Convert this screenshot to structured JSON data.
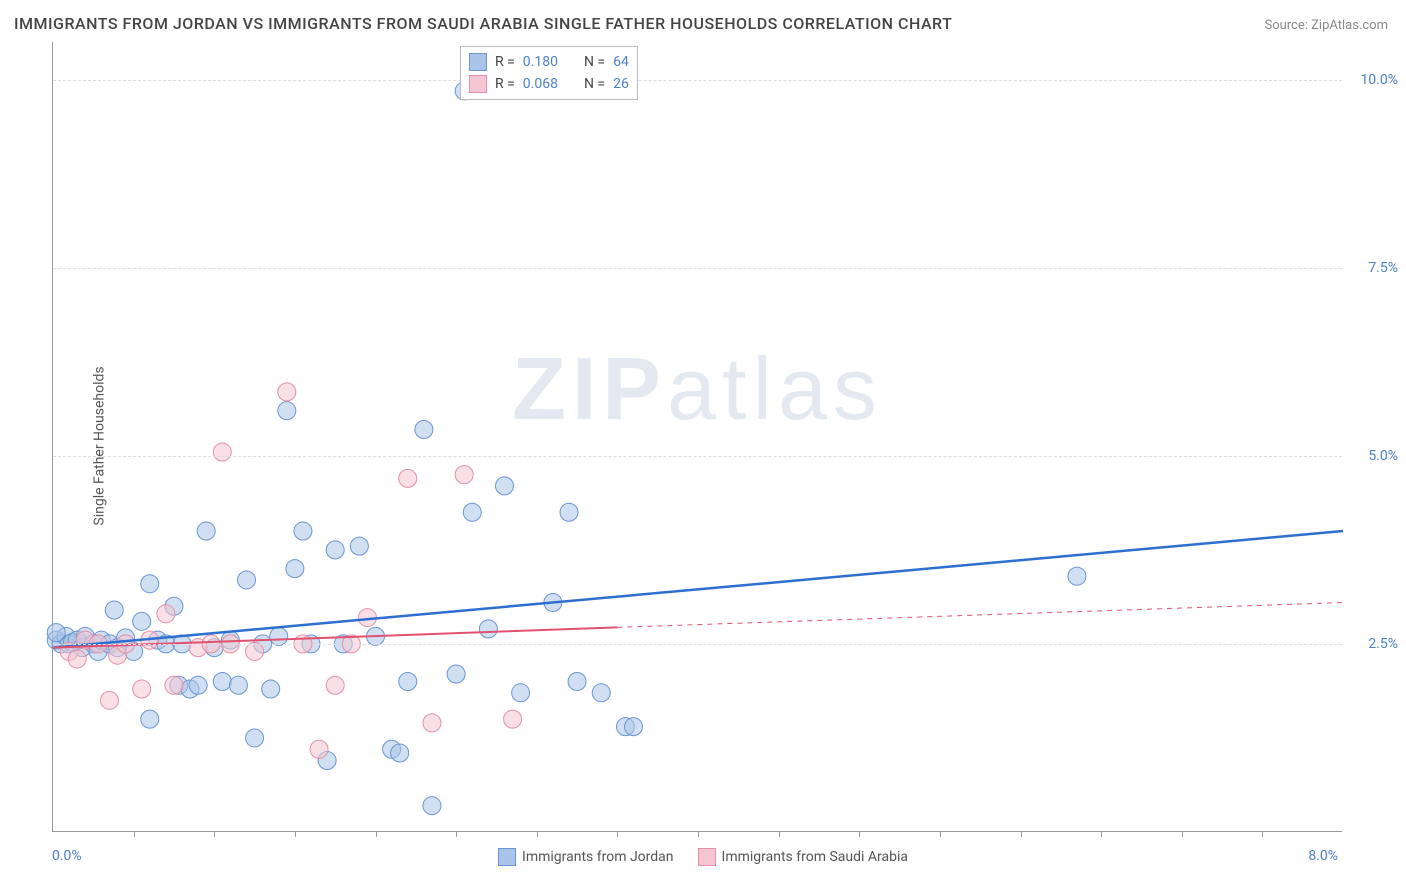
{
  "title": "IMMIGRANTS FROM JORDAN VS IMMIGRANTS FROM SAUDI ARABIA SINGLE FATHER HOUSEHOLDS CORRELATION CHART",
  "source": "Source: ZipAtlas.com",
  "y_axis_title": "Single Father Households",
  "watermark_a": "ZIP",
  "watermark_b": "atlas",
  "chart": {
    "type": "scatter",
    "xlim": [
      0,
      8
    ],
    "ylim": [
      0,
      10.5
    ],
    "x_origin_label": "0.0%",
    "x_end_label": "8.0%",
    "y_ticks": [
      {
        "value": 2.5,
        "label": "2.5%"
      },
      {
        "value": 5.0,
        "label": "5.0%"
      },
      {
        "value": 7.5,
        "label": "7.5%"
      },
      {
        "value": 10.0,
        "label": "10.0%"
      }
    ],
    "x_tick_positions": [
      0.5,
      1.0,
      1.5,
      2.0,
      2.5,
      3.0,
      3.5,
      4.0,
      4.5,
      5.0,
      5.5,
      6.0,
      6.5,
      7.0,
      7.5
    ],
    "background_color": "#ffffff",
    "grid_color": "#dddddd",
    "marker_radius": 9,
    "marker_opacity": 0.55,
    "series": [
      {
        "name": "Immigrants from Jordan",
        "color_fill": "#a9c4e8",
        "color_stroke": "#6b96d1",
        "R": "0.180",
        "N": "64",
        "trend": {
          "x1": 0,
          "y1": 2.45,
          "x2": 8,
          "y2": 4.0,
          "color": "#2d6fd1",
          "width": 2.5,
          "dash": "none"
        },
        "trend_ext": null,
        "points": [
          [
            0.02,
            2.55
          ],
          [
            0.05,
            2.5
          ],
          [
            0.08,
            2.6
          ],
          [
            0.1,
            2.5
          ],
          [
            0.12,
            2.52
          ],
          [
            0.15,
            2.55
          ],
          [
            0.18,
            2.45
          ],
          [
            0.2,
            2.6
          ],
          [
            0.25,
            2.5
          ],
          [
            0.28,
            2.4
          ],
          [
            0.3,
            2.55
          ],
          [
            0.35,
            2.5
          ],
          [
            0.38,
            2.95
          ],
          [
            0.4,
            2.45
          ],
          [
            0.45,
            2.58
          ],
          [
            0.5,
            2.4
          ],
          [
            0.55,
            2.8
          ],
          [
            0.6,
            3.3
          ],
          [
            0.6,
            1.5
          ],
          [
            0.65,
            2.55
          ],
          [
            0.7,
            2.5
          ],
          [
            0.75,
            3.0
          ],
          [
            0.78,
            1.95
          ],
          [
            0.8,
            2.5
          ],
          [
            0.85,
            1.9
          ],
          [
            0.9,
            1.95
          ],
          [
            0.95,
            4.0
          ],
          [
            1.0,
            2.45
          ],
          [
            1.05,
            2.0
          ],
          [
            1.1,
            2.55
          ],
          [
            1.2,
            3.35
          ],
          [
            1.25,
            1.25
          ],
          [
            1.3,
            2.5
          ],
          [
            1.35,
            1.9
          ],
          [
            1.4,
            2.6
          ],
          [
            1.45,
            5.6
          ],
          [
            1.5,
            3.5
          ],
          [
            1.55,
            4.0
          ],
          [
            1.6,
            2.5
          ],
          [
            1.7,
            0.95
          ],
          [
            1.75,
            3.75
          ],
          [
            1.8,
            2.5
          ],
          [
            1.9,
            3.8
          ],
          [
            2.0,
            2.6
          ],
          [
            2.1,
            1.1
          ],
          [
            2.15,
            1.05
          ],
          [
            2.2,
            2.0
          ],
          [
            2.3,
            5.35
          ],
          [
            2.35,
            0.35
          ],
          [
            2.5,
            2.1
          ],
          [
            2.6,
            4.25
          ],
          [
            2.7,
            2.7
          ],
          [
            2.8,
            4.6
          ],
          [
            2.9,
            1.85
          ],
          [
            3.1,
            3.05
          ],
          [
            3.2,
            4.25
          ],
          [
            3.25,
            2.0
          ],
          [
            3.4,
            1.85
          ],
          [
            3.55,
            1.4
          ],
          [
            3.6,
            1.4
          ],
          [
            2.55,
            9.85
          ],
          [
            6.35,
            3.4
          ],
          [
            1.15,
            1.95
          ],
          [
            0.02,
            2.65
          ]
        ]
      },
      {
        "name": "Immigrants from Saudi Arabia",
        "color_fill": "#f3c6d1",
        "color_stroke": "#e58fa7",
        "R": "0.068",
        "N": "26",
        "trend": {
          "x1": 0,
          "y1": 2.45,
          "x2": 3.5,
          "y2": 2.72,
          "color": "#e1526f",
          "width": 2,
          "dash": "none"
        },
        "trend_ext": {
          "x1": 3.5,
          "y1": 2.72,
          "x2": 8,
          "y2": 3.05,
          "color": "#e1526f",
          "width": 1,
          "dash": "5,5"
        },
        "points": [
          [
            0.1,
            2.4
          ],
          [
            0.15,
            2.3
          ],
          [
            0.2,
            2.55
          ],
          [
            0.28,
            2.5
          ],
          [
            0.35,
            1.75
          ],
          [
            0.4,
            2.35
          ],
          [
            0.45,
            2.5
          ],
          [
            0.55,
            1.9
          ],
          [
            0.6,
            2.55
          ],
          [
            0.7,
            2.9
          ],
          [
            0.75,
            1.95
          ],
          [
            0.9,
            2.45
          ],
          [
            0.98,
            2.5
          ],
          [
            1.05,
            5.05
          ],
          [
            1.1,
            2.5
          ],
          [
            1.25,
            2.4
          ],
          [
            1.45,
            5.85
          ],
          [
            1.55,
            2.5
          ],
          [
            1.65,
            1.1
          ],
          [
            1.75,
            1.95
          ],
          [
            1.85,
            2.5
          ],
          [
            1.95,
            2.85
          ],
          [
            2.2,
            4.7
          ],
          [
            2.35,
            1.45
          ],
          [
            2.55,
            4.75
          ],
          [
            2.85,
            1.5
          ]
        ]
      }
    ]
  },
  "stats_legend": {
    "r_label": "R  =",
    "n_label": "N  ="
  }
}
